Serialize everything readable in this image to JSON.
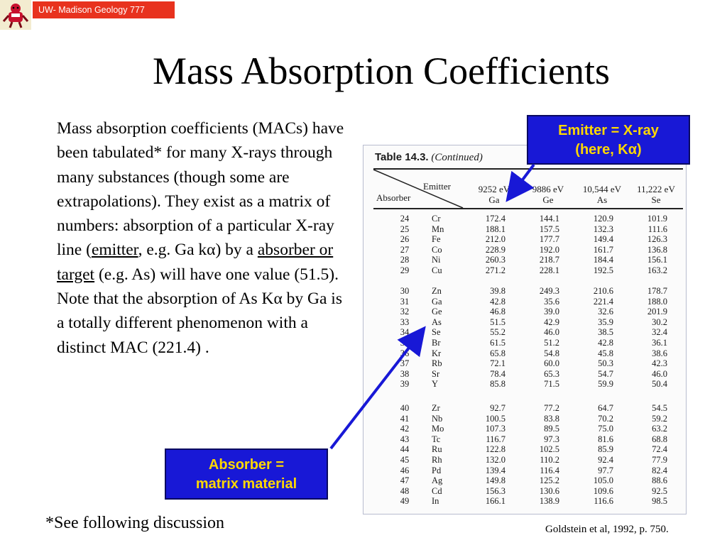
{
  "header": {
    "badge": "UW- Madison Geology  777"
  },
  "title": "Mass Absorption Coefficients",
  "body": {
    "p1": "Mass absorption coefficients (MACs) have been tabulated* for many X-rays through many substances (though some are extrapolations). They exist as a matrix of numbers: absorption of a particular X-ray line (",
    "emitter_term": "emitter",
    "p2": ", e.g. Ga k",
    "alpha1": "α",
    "p3": ") by a ",
    "absorber_term": "absorber or target",
    "p4": " (e.g. As) will have one value (51.5). Note that the absorption of As K",
    "alpha2": "α",
    "p5": " by Ga is a totally different phenomenon with a distinct MAC (221.4) ."
  },
  "footnote": "*See following discussion",
  "citation": "Goldstein et al, 1992, p. 750.",
  "callouts": {
    "emitter_line1": "Emitter = X-ray",
    "emitter_line2": "(here, Kα)",
    "absorber_line1": "Absorber =",
    "absorber_line2": "matrix material"
  },
  "colors": {
    "callout_bg": "#1818d6",
    "callout_text": "#ffd800",
    "badge_bg": "#e8321e",
    "arrow": "#1818d6"
  },
  "table": {
    "caption_num": "Table 14.3.",
    "caption_rest": "(Continued)",
    "emitter_label": "Emitter",
    "absorber_label": "Absorber",
    "columns": [
      {
        "energy": "9252 eV",
        "element": "Ga"
      },
      {
        "energy": "9886 eV",
        "element": "Ge"
      },
      {
        "energy": "10,544 eV",
        "element": "As"
      },
      {
        "energy": "11,222 eV",
        "element": "Se"
      }
    ],
    "groups": [
      [
        [
          "24",
          "Cr",
          "172.4",
          "144.1",
          "120.9",
          "101.9"
        ],
        [
          "25",
          "Mn",
          "188.1",
          "157.5",
          "132.3",
          "111.6"
        ],
        [
          "26",
          "Fe",
          "212.0",
          "177.7",
          "149.4",
          "126.3"
        ],
        [
          "27",
          "Co",
          "228.9",
          "192.0",
          "161.7",
          "136.8"
        ],
        [
          "28",
          "Ni",
          "260.3",
          "218.7",
          "184.4",
          "156.1"
        ],
        [
          "29",
          "Cu",
          "271.2",
          "228.1",
          "192.5",
          "163.2"
        ]
      ],
      [
        [
          "30",
          "Zn",
          "39.8",
          "249.3",
          "210.6",
          "178.7"
        ],
        [
          "31",
          "Ga",
          "42.8",
          "35.6",
          "221.4",
          "188.0"
        ],
        [
          "32",
          "Ge",
          "46.8",
          "39.0",
          "32.6",
          "201.9"
        ],
        [
          "33",
          "As",
          "51.5",
          "42.9",
          "35.9",
          "30.2"
        ],
        [
          "34",
          "Se",
          "55.2",
          "46.0",
          "38.5",
          "32.4"
        ],
        [
          "35",
          "Br",
          "61.5",
          "51.2",
          "42.8",
          "36.1"
        ],
        [
          "36",
          "Kr",
          "65.8",
          "54.8",
          "45.8",
          "38.6"
        ],
        [
          "37",
          "Rb",
          "72.1",
          "60.0",
          "50.3",
          "42.3"
        ],
        [
          "38",
          "Sr",
          "78.4",
          "65.3",
          "54.7",
          "46.0"
        ],
        [
          "39",
          "Y",
          "85.8",
          "71.5",
          "59.9",
          "50.4"
        ]
      ],
      [
        [
          "40",
          "Zr",
          "92.7",
          "77.2",
          "64.7",
          "54.5"
        ],
        [
          "41",
          "Nb",
          "100.5",
          "83.8",
          "70.2",
          "59.2"
        ],
        [
          "42",
          "Mo",
          "107.3",
          "89.5",
          "75.0",
          "63.2"
        ],
        [
          "43",
          "Tc",
          "116.7",
          "97.3",
          "81.6",
          "68.8"
        ],
        [
          "44",
          "Ru",
          "122.8",
          "102.5",
          "85.9",
          "72.4"
        ],
        [
          "45",
          "Rh",
          "132.0",
          "110.2",
          "92.4",
          "77.9"
        ],
        [
          "46",
          "Pd",
          "139.4",
          "116.4",
          "97.7",
          "82.4"
        ],
        [
          "47",
          "Ag",
          "149.8",
          "125.2",
          "105.0",
          "88.6"
        ],
        [
          "48",
          "Cd",
          "156.3",
          "130.6",
          "109.6",
          "92.5"
        ],
        [
          "49",
          "In",
          "166.1",
          "138.9",
          "116.6",
          "98.5"
        ]
      ]
    ]
  }
}
